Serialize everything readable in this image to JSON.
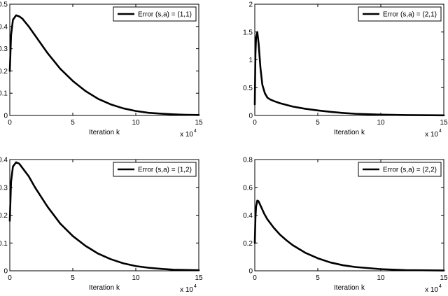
{
  "chart_data": [
    {
      "type": "line",
      "xlabel": "Iteration k",
      "ylabel": "",
      "x_scale_label": "x 10",
      "x_scale_exponent": "4",
      "xlim": [
        0,
        15
      ],
      "ylim": [
        0,
        0.5
      ],
      "xticks": [
        "0",
        "5",
        "10",
        "15"
      ],
      "yticks": [
        "0",
        "0.1",
        "0.2",
        "0.3",
        "0.4",
        "0.5"
      ],
      "legend_position": "top-right",
      "series": [
        {
          "name": "Error (s,a) = (1,1)",
          "color": "#000000",
          "x": [
            0,
            0.1,
            0.25,
            0.5,
            0.75,
            1.0,
            1.5,
            2,
            2.5,
            3,
            4,
            5,
            6,
            7,
            8,
            9,
            10,
            11,
            12,
            13,
            14,
            15
          ],
          "y": [
            0.2,
            0.36,
            0.43,
            0.45,
            0.445,
            0.435,
            0.4,
            0.36,
            0.32,
            0.28,
            0.21,
            0.155,
            0.11,
            0.075,
            0.05,
            0.032,
            0.02,
            0.012,
            0.008,
            0.005,
            0.003,
            0.002
          ]
        }
      ]
    },
    {
      "type": "line",
      "xlabel": "Iteration k",
      "ylabel": "",
      "x_scale_label": "x 10",
      "x_scale_exponent": "4",
      "xlim": [
        0,
        15
      ],
      "ylim": [
        0,
        2
      ],
      "xticks": [
        "0",
        "5",
        "10",
        "15"
      ],
      "yticks": [
        "0",
        "0.5",
        "1",
        "1.5",
        "2"
      ],
      "legend_position": "top-right",
      "series": [
        {
          "name": "Error (s,a) = (2,1)",
          "color": "#000000",
          "x": [
            0,
            0.05,
            0.1,
            0.2,
            0.3,
            0.45,
            0.6,
            0.8,
            1.0,
            1.2,
            1.5,
            2,
            3,
            4,
            5,
            6,
            7,
            8,
            10,
            12,
            15
          ],
          "y": [
            0.2,
            1.1,
            1.4,
            1.5,
            1.3,
            0.85,
            0.55,
            0.4,
            0.32,
            0.29,
            0.26,
            0.22,
            0.16,
            0.12,
            0.09,
            0.065,
            0.045,
            0.03,
            0.015,
            0.007,
            0.002
          ]
        }
      ]
    },
    {
      "type": "line",
      "xlabel": "Iteration k",
      "ylabel": "",
      "x_scale_label": "x 10",
      "x_scale_exponent": "4",
      "xlim": [
        0,
        15
      ],
      "ylim": [
        0,
        0.4
      ],
      "xticks": [
        "0",
        "5",
        "10",
        "15"
      ],
      "yticks": [
        "0",
        "0.1",
        "0.2",
        "0.3",
        "0.4"
      ],
      "legend_position": "top-right",
      "series": [
        {
          "name": "Error (s,a) = (1,2)",
          "color": "#000000",
          "x": [
            0,
            0.1,
            0.25,
            0.5,
            0.75,
            1.0,
            1.5,
            2,
            2.5,
            3,
            4,
            5,
            6,
            7,
            8,
            9,
            10,
            11,
            12,
            13,
            14,
            15
          ],
          "y": [
            0.18,
            0.32,
            0.375,
            0.39,
            0.385,
            0.37,
            0.34,
            0.3,
            0.265,
            0.23,
            0.17,
            0.125,
            0.09,
            0.062,
            0.042,
            0.027,
            0.017,
            0.011,
            0.007,
            0.004,
            0.003,
            0.002
          ]
        }
      ]
    },
    {
      "type": "line",
      "xlabel": "Iteration k",
      "ylabel": "",
      "x_scale_label": "x 10",
      "x_scale_exponent": "4",
      "xlim": [
        0,
        15
      ],
      "ylim": [
        0,
        0.8
      ],
      "xticks": [
        "0",
        "5",
        "10",
        "15"
      ],
      "yticks": [
        "0",
        "0.2",
        "0.4",
        "0.6",
        "0.8"
      ],
      "legend_position": "top-right",
      "series": [
        {
          "name": "Error (s,a) = (2,2)",
          "color": "#000000",
          "x": [
            0,
            0.05,
            0.1,
            0.2,
            0.3,
            0.5,
            0.75,
            1.0,
            1.5,
            2,
            2.5,
            3,
            4,
            5,
            6,
            7,
            8,
            10,
            12,
            15
          ],
          "y": [
            0.2,
            0.38,
            0.46,
            0.505,
            0.5,
            0.46,
            0.41,
            0.37,
            0.31,
            0.26,
            0.22,
            0.185,
            0.13,
            0.09,
            0.06,
            0.04,
            0.027,
            0.012,
            0.005,
            0.002
          ]
        }
      ]
    }
  ]
}
